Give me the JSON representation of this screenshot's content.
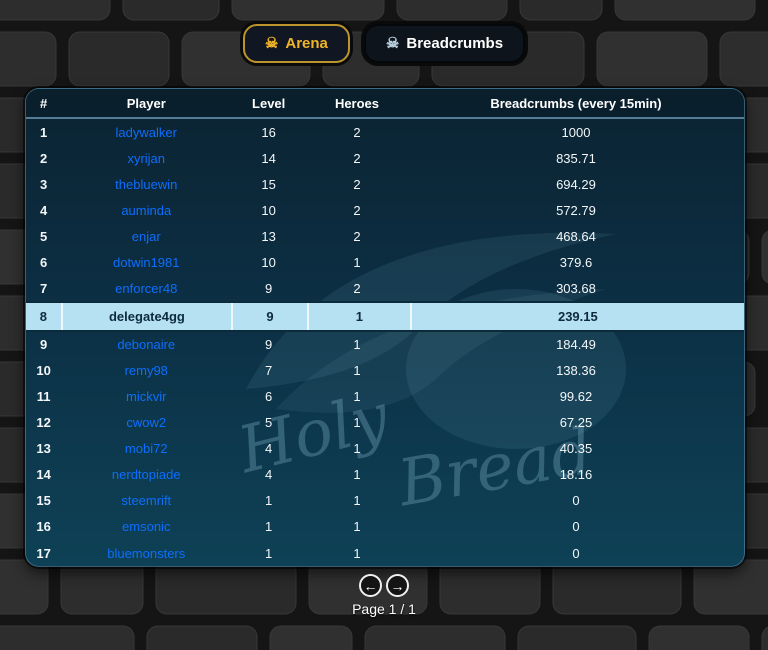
{
  "tabs": [
    {
      "label": "Arena",
      "icon": "skull-crossbones-icon",
      "icon_glyph": "☠",
      "text_color": "#f0b429",
      "border_color": "#bb952c"
    },
    {
      "label": "Breadcrumbs",
      "icon": "skull-crossbones-icon",
      "icon_glyph": "☠",
      "text_color": "#ffffff",
      "border_color": "#05080b"
    }
  ],
  "table": {
    "columns": [
      "#",
      "Player",
      "Level",
      "Heroes",
      "Breadcrumbs (every 15min)"
    ],
    "rows": [
      {
        "rank": "1",
        "player": "ladywalker",
        "level": "16",
        "heroes": "2",
        "breadcrumbs": "1000",
        "highlighted": false
      },
      {
        "rank": "2",
        "player": "xyrijan",
        "level": "14",
        "heroes": "2",
        "breadcrumbs": "835.71",
        "highlighted": false
      },
      {
        "rank": "3",
        "player": "thebluewin",
        "level": "15",
        "heroes": "2",
        "breadcrumbs": "694.29",
        "highlighted": false
      },
      {
        "rank": "4",
        "player": "auminda",
        "level": "10",
        "heroes": "2",
        "breadcrumbs": "572.79",
        "highlighted": false
      },
      {
        "rank": "5",
        "player": "enjar",
        "level": "13",
        "heroes": "2",
        "breadcrumbs": "468.64",
        "highlighted": false
      },
      {
        "rank": "6",
        "player": "dotwin1981",
        "level": "10",
        "heroes": "1",
        "breadcrumbs": "379.6",
        "highlighted": false
      },
      {
        "rank": "7",
        "player": "enforcer48",
        "level": "9",
        "heroes": "2",
        "breadcrumbs": "303.68",
        "highlighted": false
      },
      {
        "rank": "8",
        "player": "delegate4gg",
        "level": "9",
        "heroes": "1",
        "breadcrumbs": "239.15",
        "highlighted": true
      },
      {
        "rank": "9",
        "player": "debonaire",
        "level": "9",
        "heroes": "1",
        "breadcrumbs": "184.49",
        "highlighted": false
      },
      {
        "rank": "10",
        "player": "remy98",
        "level": "7",
        "heroes": "1",
        "breadcrumbs": "138.36",
        "highlighted": false
      },
      {
        "rank": "11",
        "player": "mickvir",
        "level": "6",
        "heroes": "1",
        "breadcrumbs": "99.62",
        "highlighted": false
      },
      {
        "rank": "12",
        "player": "cwow2",
        "level": "5",
        "heroes": "1",
        "breadcrumbs": "67.25",
        "highlighted": false
      },
      {
        "rank": "13",
        "player": "mobi72",
        "level": "4",
        "heroes": "1",
        "breadcrumbs": "40.35",
        "highlighted": false
      },
      {
        "rank": "14",
        "player": "nerdtopiade",
        "level": "4",
        "heroes": "1",
        "breadcrumbs": "18.16",
        "highlighted": false
      },
      {
        "rank": "15",
        "player": "steemrift",
        "level": "1",
        "heroes": "1",
        "breadcrumbs": "0",
        "highlighted": false
      },
      {
        "rank": "16",
        "player": "emsonic",
        "level": "1",
        "heroes": "1",
        "breadcrumbs": "0",
        "highlighted": false
      },
      {
        "rank": "17",
        "player": "bluemonsters",
        "level": "1",
        "heroes": "1",
        "breadcrumbs": "0",
        "highlighted": false
      }
    ]
  },
  "watermark": {
    "line1": "Holy",
    "line2": "Bread"
  },
  "pagination": {
    "label": "Page 1 / 1",
    "prev_icon": "arrow-left-icon",
    "next_icon": "arrow-right-icon",
    "prev_glyph": "←",
    "next_glyph": "→"
  },
  "colors": {
    "accent_gold": "#f0b429",
    "player_link_blue": "#0d6efd",
    "highlight_row": "#b5e1f3",
    "highlight_text": "#0d2b3c",
    "panel_top": "#0b2331",
    "panel_bottom": "#0e4156",
    "brick": "#2d2d2d",
    "mortar": "#151515"
  }
}
